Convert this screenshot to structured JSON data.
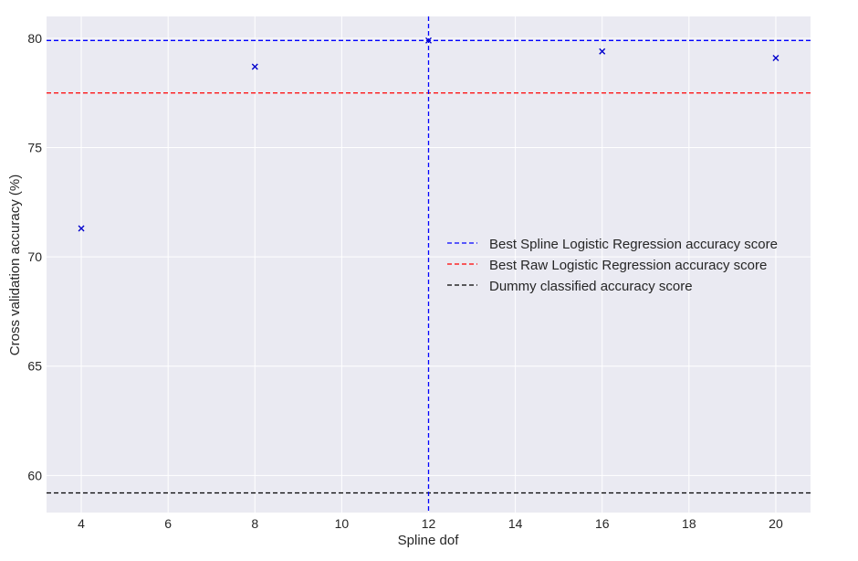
{
  "chart_data": {
    "type": "scatter",
    "title": "",
    "xlabel": "Spline dof",
    "ylabel": "Cross validation accuracy (%)",
    "xlim": [
      3.2,
      20.8
    ],
    "ylim": [
      58.3,
      81.0
    ],
    "xticks": [
      4,
      6,
      8,
      10,
      12,
      14,
      16,
      18,
      20
    ],
    "yticks": [
      60,
      65,
      70,
      75,
      80
    ],
    "grid": true,
    "legend_position": "center-right",
    "series": [
      {
        "marker": "x",
        "color": "#0000cc",
        "x": [
          4,
          8,
          12,
          16,
          20
        ],
        "y": [
          71.3,
          78.7,
          79.9,
          79.4,
          79.1
        ]
      }
    ],
    "reference_lines": [
      {
        "orientation": "horizontal",
        "value": 79.9,
        "color": "#0000ff",
        "style": "dashed",
        "label": "Best Spline Logistic Regression accuracy score"
      },
      {
        "orientation": "horizontal",
        "value": 77.5,
        "color": "#ff0000",
        "style": "dashed",
        "label": "Best Raw Logistic Regression accuracy score"
      },
      {
        "orientation": "horizontal",
        "value": 59.2,
        "color": "#000000",
        "style": "dashed",
        "label": "Dummy classified accuracy score"
      },
      {
        "orientation": "vertical",
        "value": 12,
        "color": "#0000ff",
        "style": "dashed",
        "label": ""
      }
    ],
    "legend": [
      {
        "label": "Best Spline Logistic Regression accuracy score",
        "color": "#0000ff"
      },
      {
        "label": "Best Raw Logistic Regression accuracy score",
        "color": "#ff0000"
      },
      {
        "label": "Dummy classified accuracy score",
        "color": "#000000"
      }
    ],
    "colors": {
      "plot_background": "#eaeaf2",
      "gridline": "#ffffff"
    }
  }
}
